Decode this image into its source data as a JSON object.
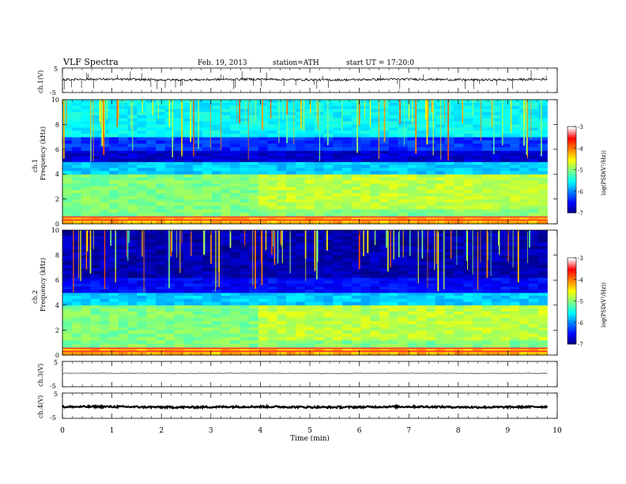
{
  "header": {
    "title": "VLF  Spectra",
    "date": "Feb. 19, 2013",
    "station": "station=ATH",
    "start": "start  UT  =   17:20:0"
  },
  "colors": {
    "colormap": [
      "#00007f",
      "#0000ff",
      "#0080ff",
      "#00ffff",
      "#80ff80",
      "#ffff00",
      "#ff8000",
      "#ff0000",
      "#ffffff"
    ]
  },
  "chart_data": [
    {
      "type": "line",
      "name": "ch1-waveform",
      "ylabel": "ch.1(V)",
      "ytick_labels": [
        "5",
        "-5"
      ],
      "ylim": [
        -5,
        5
      ],
      "baseline_value": 0.3,
      "noise": "moderate with spikes"
    },
    {
      "type": "heatmap",
      "name": "ch1-spectrogram",
      "ylabel": [
        "ch.1",
        "Frequency (kHz)"
      ],
      "ytick_labels": [
        "0",
        "2",
        "4",
        "6",
        "8",
        "10"
      ],
      "ylim": [
        0,
        10
      ],
      "colorbar": {
        "label": "log(PSD(V²/Hz))",
        "tick_labels": [
          "-3",
          "-4",
          "-5",
          "-6",
          "-7"
        ],
        "range": [
          -7,
          -3
        ]
      },
      "bands_khz": [
        {
          "from": 0,
          "to": 0.6,
          "level": -4.2
        },
        {
          "from": 0.6,
          "to": 1.2,
          "level": -5.0
        },
        {
          "from": 1.2,
          "to": 4.0,
          "level": -5.0
        },
        {
          "from": 4.0,
          "to": 5.0,
          "level": -5.7
        },
        {
          "from": 5.0,
          "to": 5.9,
          "level": -6.7
        },
        {
          "from": 5.9,
          "to": 7.0,
          "level": -6.3
        },
        {
          "from": 7.0,
          "to": 10.0,
          "level": -5.5
        }
      ]
    },
    {
      "type": "heatmap",
      "name": "ch2-spectrogram",
      "ylabel": [
        "ch.2",
        "Frequency (kHz)"
      ],
      "ytick_labels": [
        "0",
        "2",
        "4",
        "6",
        "8",
        "10"
      ],
      "ylim": [
        0,
        10
      ],
      "colorbar": {
        "label": "log(PSD(V²/Hz))",
        "tick_labels": [
          "-3",
          "-4",
          "-5",
          "-6",
          "-7"
        ],
        "range": [
          -7,
          -3
        ]
      },
      "bands_khz": [
        {
          "from": 0,
          "to": 0.6,
          "level": -4.2
        },
        {
          "from": 0.6,
          "to": 1.2,
          "level": -5.0
        },
        {
          "from": 1.2,
          "to": 4.0,
          "level": -5.0
        },
        {
          "from": 4.0,
          "to": 5.0,
          "level": -5.7
        },
        {
          "from": 5.0,
          "to": 6.2,
          "level": -6.5
        },
        {
          "from": 6.2,
          "to": 10.0,
          "level": -6.8
        }
      ]
    },
    {
      "type": "line",
      "name": "ch3-waveform",
      "ylabel": "ch.3(V)",
      "ytick_labels": [
        "5",
        "-5"
      ],
      "ylim": [
        -5,
        5
      ],
      "baseline_value": 0.3,
      "noise": "very small"
    },
    {
      "type": "line",
      "name": "ch4-waveform",
      "ylabel": "ch.4(V)",
      "ytick_labels": [
        "5",
        "-5"
      ],
      "ylim": [
        -5,
        5
      ],
      "baseline_value": -0.5,
      "noise": "dense"
    }
  ],
  "xaxis": {
    "label": "Time  (min)",
    "tick_labels": [
      "0",
      "1",
      "2",
      "3",
      "4",
      "5",
      "6",
      "7",
      "8",
      "9",
      "10"
    ],
    "xlim": [
      0,
      10
    ],
    "data_end": 9.8
  }
}
